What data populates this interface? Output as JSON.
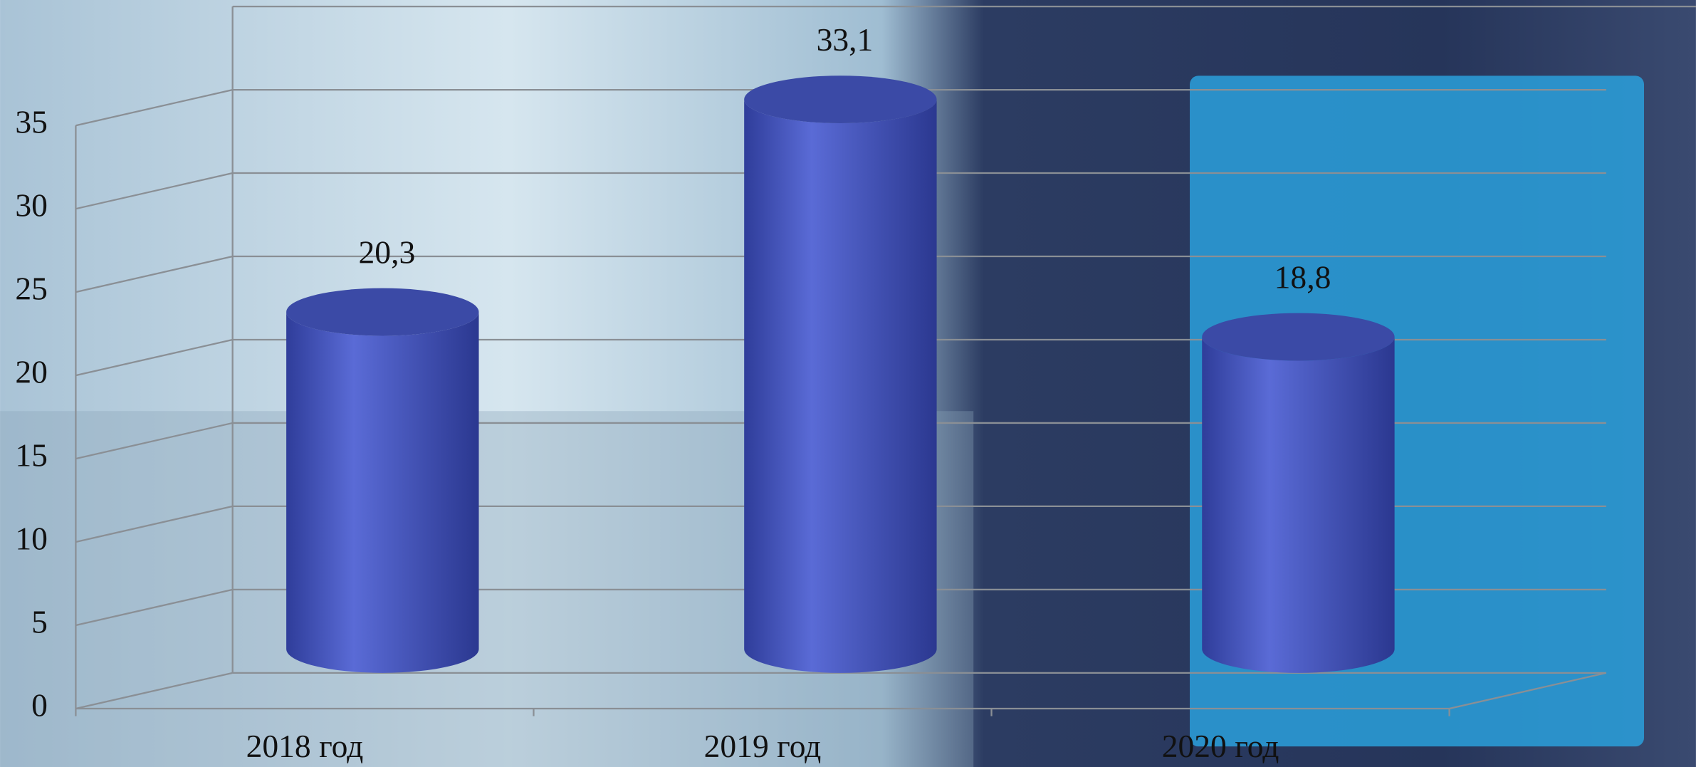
{
  "chart_data": {
    "type": "cylinder",
    "categories": [
      "2018 год",
      "2019 год",
      "2020 год"
    ],
    "values": [
      20.3,
      33.1,
      18.8
    ],
    "value_labels": [
      "20,3",
      "33,1",
      "18,8"
    ],
    "color": "#3e4fb8",
    "ylim": [
      0,
      40
    ],
    "yticks": [
      0,
      5,
      10,
      15,
      20,
      25,
      30,
      35
    ],
    "grid": true
  }
}
